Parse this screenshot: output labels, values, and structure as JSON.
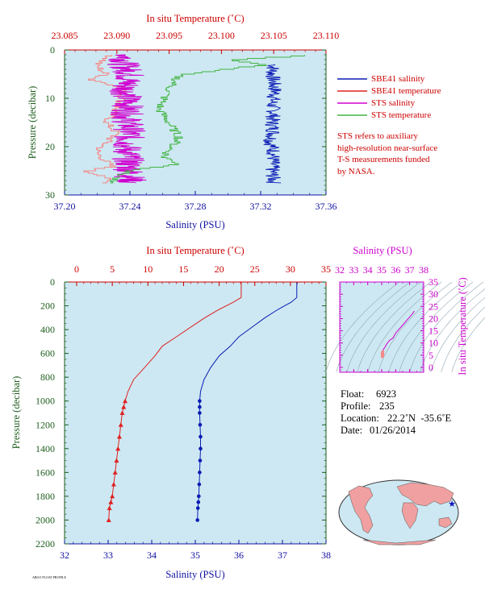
{
  "colors": {
    "panel_bg": "#cde8f2",
    "red": "#e02020",
    "blue": "#0a1bb4",
    "magenta": "#d000d0",
    "green": "#44b544",
    "pink": "#f48a8a",
    "axis_red": "#cc0000",
    "axis_blue": "#1010a0",
    "axis_green": "#1e5e1e",
    "axis_magenta": "#cc00cc"
  },
  "top_panel": {
    "top_axis_title": "In situ Temperature (˚C)",
    "bottom_axis_title": "Salinity (PSU)",
    "left_axis_title": "Pressure (decibar)",
    "temp_ticks": [
      "23.085",
      "23.090",
      "23.095",
      "23.100",
      "23.105",
      "23.110"
    ],
    "sal_ticks": [
      "37.20",
      "37.24",
      "37.28",
      "37.32",
      "37.36"
    ],
    "pres_ticks": [
      "0",
      "10",
      "20",
      "30"
    ]
  },
  "legend": {
    "items": [
      {
        "label": "SBE41 salinity",
        "color": "#0a1bb4"
      },
      {
        "label": "SBE41 temperature",
        "color": "#e02020"
      },
      {
        "label": "STS salinity",
        "color": "#d000d0"
      },
      {
        "label": "STS temperature",
        "color": "#44b544"
      }
    ],
    "note_lines": [
      "STS refers to auxiliary",
      "high-resolution near-surface",
      "T-S measurements funded",
      "by NASA."
    ]
  },
  "bottom_panel": {
    "top_axis_title": "In situ Temperature (˚C)",
    "bottom_axis_title": "Salinity (PSU)",
    "left_axis_title": "Pressure (decibar)",
    "temp_ticks": [
      "0",
      "5",
      "10",
      "15",
      "20",
      "25",
      "30",
      "35"
    ],
    "sal_ticks": [
      "32",
      "33",
      "34",
      "35",
      "36",
      "37",
      "38"
    ],
    "pres_ticks": [
      "0",
      "200",
      "400",
      "600",
      "800",
      "1000",
      "1200",
      "1400",
      "1600",
      "1800",
      "2000",
      "2200"
    ]
  },
  "ts_panel": {
    "top_axis_title": "Salinity (PSU)",
    "right_axis_title": "In situ Temperature (˚C)",
    "sal_ticks": [
      "32",
      "33",
      "34",
      "35",
      "36",
      "37",
      "38"
    ],
    "temp_ticks": [
      "0",
      "5",
      "10",
      "15",
      "20",
      "25",
      "30",
      "35"
    ]
  },
  "float_info": {
    "float_label": "Float:",
    "float_value": "6923",
    "profile_label": "Profile:",
    "profile_value": "235",
    "location_label": "Location:",
    "location_value": "22.2˚N  -35.6˚E",
    "date_label": "Date:",
    "date_value": "01/26/2014"
  },
  "chart_data": [
    {
      "type": "line",
      "title": "",
      "xlabel": "Salinity (PSU)",
      "x2label": "In situ Temperature (˚C)",
      "ylabel": "Pressure (decibar)",
      "xlim": [
        37.2,
        37.36
      ],
      "x2lim": [
        23.085,
        23.11
      ],
      "ylim": [
        30,
        0
      ],
      "series": [
        {
          "name": "SBE41 salinity",
          "axis": "salinity",
          "x": [
            37.328,
            37.327,
            37.328,
            37.329,
            37.327,
            37.328,
            37.327,
            37.328,
            37.326,
            37.328,
            37.327,
            37.328
          ],
          "y": [
            3,
            5,
            7,
            9,
            11,
            13,
            15,
            17,
            19,
            21,
            25,
            27.5
          ]
        },
        {
          "name": "SBE41 temperature",
          "axis": "temperature",
          "x": [
            23.0895,
            23.088,
            23.089,
            23.0875,
            23.0905,
            23.0905,
            23.089,
            23.09,
            23.0885,
            23.088,
            23.0895,
            23.087,
            23.089,
            23.089
          ],
          "y": [
            1,
            3,
            5,
            6,
            7.5,
            10,
            15,
            17,
            20,
            21,
            24,
            25,
            26,
            27.5
          ]
        },
        {
          "name": "STS salinity",
          "axis": "salinity",
          "x": [
            37.238,
            37.236,
            37.24,
            37.237,
            37.239,
            37.238,
            37.24,
            37.238,
            37.239,
            37.24,
            37.241
          ],
          "y": [
            1,
            3,
            5,
            8,
            11,
            14,
            17,
            20,
            23,
            26,
            27.5
          ]
        },
        {
          "name": "STS temperature",
          "axis": "temperature",
          "x": [
            23.108,
            23.101,
            23.104,
            23.096,
            23.095,
            23.094,
            23.096,
            23.0945,
            23.096,
            23.091,
            23.089
          ],
          "y": [
            1,
            2,
            3,
            5,
            8,
            12,
            18,
            22,
            23.5,
            25,
            27.5
          ]
        }
      ]
    },
    {
      "type": "line",
      "title": "",
      "xlabel": "Salinity (PSU)",
      "x2label": "In situ Temperature (˚C)",
      "ylabel": "Pressure (decibar)",
      "xlim": [
        32,
        38
      ],
      "x2lim": [
        0,
        35
      ],
      "ylim": [
        2200,
        0
      ],
      "series": [
        {
          "name": "Temperature",
          "axis": "temperature",
          "x": [
            23.1,
            23.1,
            22,
            20,
            18,
            16,
            14,
            12,
            11,
            9.5,
            8,
            7.2,
            6.8,
            6.6,
            6.4,
            6.2,
            6.0,
            5.8,
            5.6,
            5.4,
            5.2,
            5.0,
            4.8,
            4.6,
            4.5
          ],
          "y": [
            0,
            130,
            170,
            230,
            300,
            380,
            460,
            540,
            620,
            720,
            820,
            920,
            1000,
            1050,
            1100,
            1200,
            1300,
            1400,
            1500,
            1600,
            1700,
            1800,
            1850,
            1900,
            2000
          ]
        },
        {
          "name": "Salinity",
          "axis": "salinity",
          "x": [
            37.33,
            37.33,
            37.2,
            36.9,
            36.6,
            36.3,
            36.0,
            35.8,
            35.55,
            35.35,
            35.2,
            35.12,
            35.1,
            35.1,
            35.1,
            35.11,
            35.12,
            35.12,
            35.11,
            35.1,
            35.09,
            35.08,
            35.07,
            35.06,
            35.05
          ],
          "y": [
            0,
            130,
            170,
            230,
            300,
            380,
            460,
            540,
            620,
            720,
            820,
            920,
            1000,
            1050,
            1100,
            1200,
            1300,
            1400,
            1500,
            1600,
            1700,
            1800,
            1850,
            1900,
            2000
          ]
        }
      ]
    },
    {
      "type": "scatter",
      "title": "",
      "xlabel": "Salinity (PSU)",
      "ylabel": "In situ Temperature (˚C)",
      "xlim": [
        32,
        38
      ],
      "ylim": [
        -2,
        35
      ],
      "series": [
        {
          "name": "T-S",
          "x": [
            35.05,
            35.1,
            35.12,
            35.1,
            35.2,
            35.35,
            35.55,
            35.8,
            36.0,
            36.3,
            36.6,
            36.9,
            37.2,
            37.33
          ],
          "y": [
            4.5,
            5.4,
            6.2,
            7.2,
            8.0,
            9.5,
            11,
            12,
            14,
            16,
            18,
            20,
            22,
            23.1
          ]
        }
      ]
    }
  ]
}
